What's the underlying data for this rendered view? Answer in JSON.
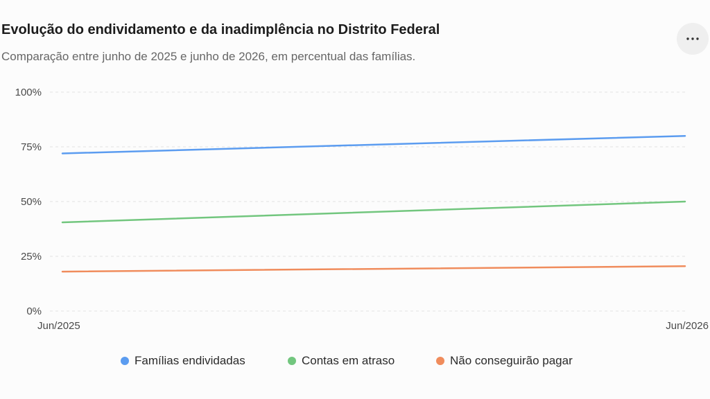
{
  "header": {
    "title": "Evolução do endividamento e da inadimplência no Distrito Federal",
    "subtitle": "Comparação entre junho de 2025 e junho de 2026, em percentual das famílias."
  },
  "menu": {
    "icon": "more-horizontal-icon"
  },
  "chart_data": {
    "type": "line",
    "title": "Evolução do endividamento e da inadimplência no Distrito Federal",
    "subtitle": "Comparação entre junho de 2025 e junho de 2026, em percentual das famílias.",
    "x": [
      "Jun/2025",
      "Jun/2026"
    ],
    "y_ticks": [
      "0%",
      "25%",
      "50%",
      "75%",
      "100%"
    ],
    "y_tick_values": [
      0,
      25,
      50,
      75,
      100
    ],
    "ylim": [
      0,
      100
    ],
    "grid": true,
    "legend_position": "bottom",
    "series": [
      {
        "name": "Famílias endividadas",
        "values": [
          72,
          80
        ],
        "color": "#5b9cf0"
      },
      {
        "name": "Contas em atraso",
        "values": [
          40.5,
          50
        ],
        "color": "#72c67e"
      },
      {
        "name": "Não conseguirão pagar",
        "values": [
          18,
          20.5
        ],
        "color": "#f08c5c"
      }
    ]
  }
}
